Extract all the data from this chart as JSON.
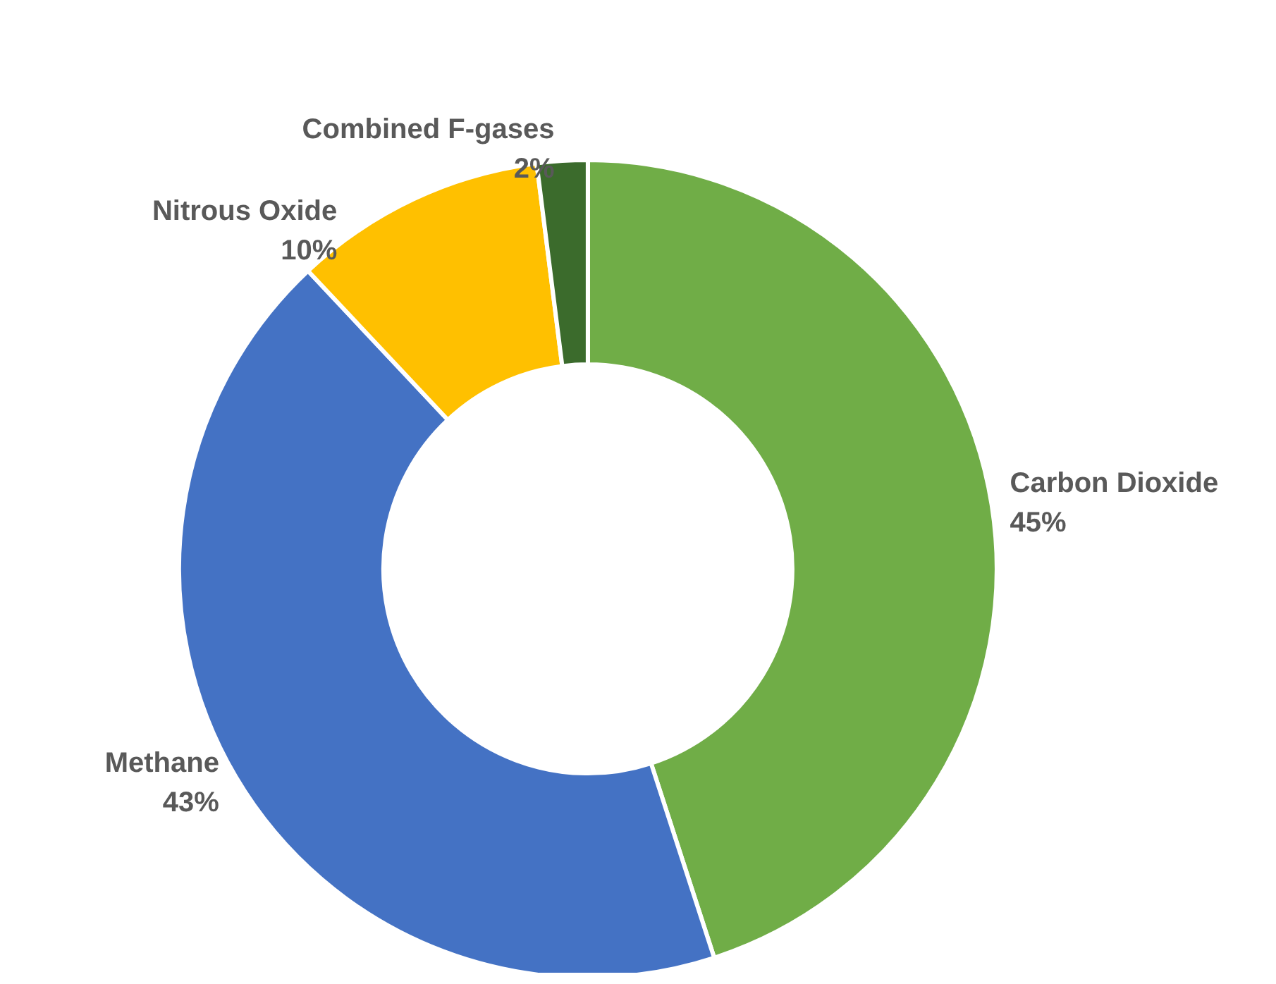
{
  "chart_data": {
    "type": "donut",
    "categories": [
      "Carbon Dioxide",
      "Methane",
      "Nitrous Oxide",
      "Combined F-gases"
    ],
    "values": [
      45,
      43,
      10,
      2
    ],
    "colors": [
      "#70ad47",
      "#4472c4",
      "#ffc000",
      "#3b6b2c"
    ],
    "value_labels": [
      "45%",
      "43%",
      "10%",
      "2%"
    ],
    "legend": false
  }
}
